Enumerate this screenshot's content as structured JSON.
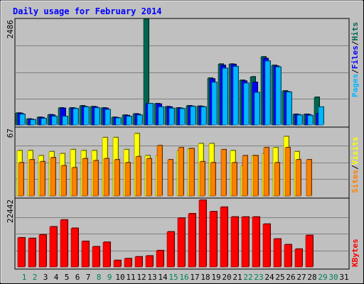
{
  "chart_data": {
    "type": "bar",
    "title": "Daily usage for February 2014",
    "categories": [
      "1",
      "2",
      "3",
      "4",
      "5",
      "6",
      "7",
      "8",
      "9",
      "10",
      "11",
      "12",
      "13",
      "14",
      "15",
      "16",
      "17",
      "18",
      "19",
      "20",
      "21",
      "22",
      "23",
      "24",
      "25",
      "26",
      "27",
      "28",
      "29",
      "30",
      "31"
    ],
    "weekend_days": [
      "1",
      "2",
      "8",
      "9",
      "15",
      "16",
      "22",
      "23",
      "29",
      "30"
    ],
    "panels": {
      "hits_files_pages": {
        "ymax": 2486,
        "ymax_label": "2486",
        "series": [
          {
            "name": "Hits",
            "color": "#006650",
            "values": [
              280,
              140,
              180,
              240,
              400,
              400,
              450,
              430,
              400,
              180,
              230,
              260,
              2486,
              500,
              430,
              400,
              450,
              440,
              1100,
              1430,
              1430,
              1050,
              1130,
              1600,
              1400,
              800,
              250,
              250,
              650,
              0,
              0
            ]
          },
          {
            "name": "Files",
            "color": "#0000ff",
            "values": [
              270,
              130,
              170,
              230,
              390,
              390,
              430,
              420,
              390,
              170,
              220,
              250,
              500,
              490,
              420,
              390,
              440,
              430,
              1080,
              1400,
              1420,
              1030,
              1000,
              1560,
              1380,
              780,
              240,
              240,
              270,
              0,
              0
            ]
          },
          {
            "name": "Pages",
            "color": "#00b8ff",
            "values": [
              250,
              120,
              150,
              200,
              200,
              380,
              420,
              400,
              360,
              160,
              200,
              230,
              500,
              420,
              390,
              380,
              430,
              420,
              1000,
              1330,
              1370,
              980,
              760,
              1500,
              1360,
              770,
              230,
              220,
              420,
              0,
              0
            ]
          }
        ],
        "legend_side": "right"
      },
      "visits_sites": {
        "ymax": 67,
        "ymax_label": "67",
        "series": [
          {
            "name": "Visits",
            "color": "#ffff00",
            "values": [
              45,
              45,
              40,
              44,
              42,
              46,
              45,
              45,
              58,
              58,
              46,
              62,
              40,
              40,
              0,
              45,
              47,
              52,
              52,
              0,
              45,
              30,
              40,
              42,
              48,
              59,
              44,
              0,
              0,
              0,
              0
            ]
          },
          {
            "name": "Sites",
            "color": "#ff8000",
            "values": [
              33,
              36,
              34,
              38,
              30,
              28,
              37,
              35,
              37,
              36,
              33,
              39,
              37,
              50,
              36,
              48,
              47,
              34,
              33,
              46,
              33,
              40,
              40,
              48,
              33,
              48,
              36,
              36,
              0,
              0,
              0
            ]
          }
        ],
        "legend_side": "right"
      },
      "kbytes": {
        "ymax": 22442,
        "ymax_label": "22442",
        "series": [
          {
            "name": "KBytes",
            "color": "#ff0000",
            "values": [
              9800,
              9600,
              10800,
              13500,
              15800,
              13000,
              8600,
              6800,
              8300,
              2200,
              2800,
              3400,
              3700,
              5500,
              11800,
              16400,
              17900,
              22442,
              18600,
              20100,
              16800,
              16800,
              16800,
              14400,
              9400,
              7500,
              6000,
              10600,
              0,
              0,
              0
            ]
          }
        ],
        "legend_side": "right"
      }
    },
    "legend_labels": {
      "pages": "Pages",
      "files": "Files",
      "hits": "Hits",
      "sites": "Sites",
      "visits": "Visits",
      "kbytes": "KBytes",
      "slash": "/"
    }
  }
}
